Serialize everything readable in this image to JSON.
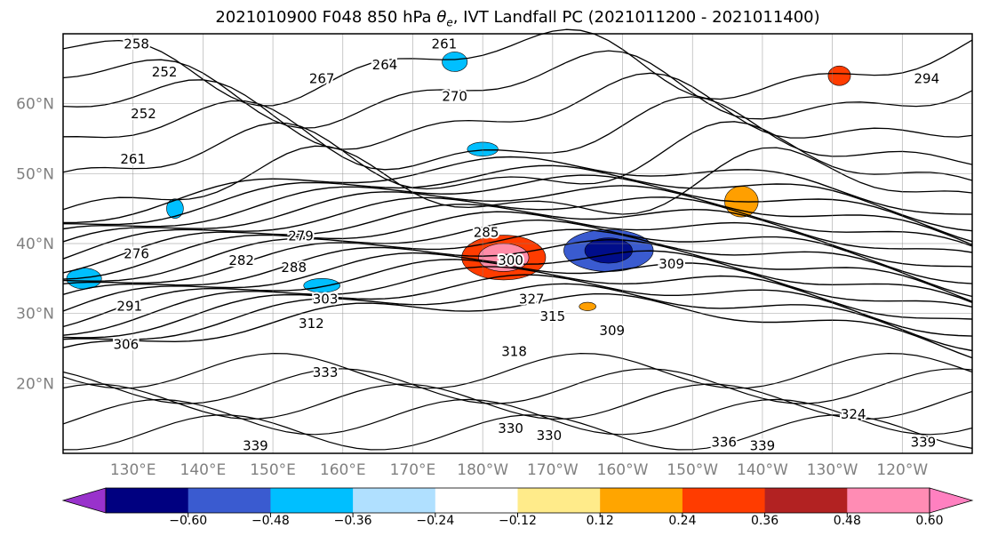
{
  "chart_data": {
    "type": "contour",
    "title_parts": {
      "prefix": "2021010900 F048 850 hPa ",
      "theta": "θ",
      "theta_sub": "e",
      "suffix": ", IVT Landfall PC (2021011200 - 2021011400)"
    },
    "lon_ticks": [
      "130°E",
      "140°E",
      "150°E",
      "160°E",
      "170°E",
      "180°W",
      "170°W",
      "160°W",
      "150°W",
      "140°W",
      "130°W",
      "120°W"
    ],
    "lat_ticks": [
      "60°N",
      "50°N",
      "40°N",
      "30°N",
      "20°N"
    ],
    "xlim": [
      120,
      250
    ],
    "ylim": [
      10,
      70
    ],
    "grid": true,
    "contour_labels": [
      {
        "text": "258",
        "lon": 130.5,
        "lat": 68.5
      },
      {
        "text": "252",
        "lon": 134.5,
        "lat": 64.5
      },
      {
        "text": "261",
        "lon": 174.5,
        "lat": 68.5
      },
      {
        "text": "264",
        "lon": 166,
        "lat": 65.5
      },
      {
        "text": "267",
        "lon": 157,
        "lat": 63.5
      },
      {
        "text": "270",
        "lon": 176,
        "lat": 61
      },
      {
        "text": "252",
        "lon": 131.5,
        "lat": 58.5
      },
      {
        "text": "261",
        "lon": 130,
        "lat": 52
      },
      {
        "text": "276",
        "lon": 130.5,
        "lat": 38.5
      },
      {
        "text": "279",
        "lon": 154,
        "lat": 41
      },
      {
        "text": "282",
        "lon": 145.5,
        "lat": 37.5
      },
      {
        "text": "288",
        "lon": 153,
        "lat": 36.5
      },
      {
        "text": "285",
        "lon": 180.5,
        "lat": 41.5
      },
      {
        "text": "300",
        "lon": 184,
        "lat": 37.5
      },
      {
        "text": "309",
        "lon": 207,
        "lat": 37
      },
      {
        "text": "303",
        "lon": 157.5,
        "lat": 32
      },
      {
        "text": "327",
        "lon": 187,
        "lat": 32
      },
      {
        "text": "315",
        "lon": 190,
        "lat": 29.5
      },
      {
        "text": "312",
        "lon": 155.5,
        "lat": 28.5
      },
      {
        "text": "291",
        "lon": 129.5,
        "lat": 31
      },
      {
        "text": "306",
        "lon": 129,
        "lat": 25.5
      },
      {
        "text": "318",
        "lon": 184.5,
        "lat": 24.5
      },
      {
        "text": "309",
        "lon": 198.5,
        "lat": 27.5
      },
      {
        "text": "333",
        "lon": 157.5,
        "lat": 21.5
      },
      {
        "text": "324",
        "lon": 233,
        "lat": 15.5
      },
      {
        "text": "330",
        "lon": 184,
        "lat": 13.5
      },
      {
        "text": "330",
        "lon": 189.5,
        "lat": 12.5
      },
      {
        "text": "336",
        "lon": 214.5,
        "lat": 11.5
      },
      {
        "text": "339",
        "lon": 220,
        "lat": 11
      },
      {
        "text": "339",
        "lon": 147.5,
        "lat": 11
      },
      {
        "text": "339",
        "lon": 243,
        "lat": 11.5
      },
      {
        "text": "294",
        "lon": 243.5,
        "lat": 63.5
      }
    ],
    "shading_patches": [
      {
        "lon": 183,
        "lat": 38,
        "rx": 6,
        "ry": 3.2,
        "color": "#ff3c00"
      },
      {
        "lon": 183,
        "lat": 38,
        "rx": 3.6,
        "ry": 2.0,
        "color": "#ff8ca8"
      },
      {
        "lon": 198,
        "lat": 39,
        "rx": 6.4,
        "ry": 3.0,
        "color": "#3a5bd0"
      },
      {
        "lon": 198,
        "lat": 39,
        "rx": 3.4,
        "ry": 1.8,
        "color": "#000d8a"
      },
      {
        "lon": 157,
        "lat": 34,
        "rx": 2.6,
        "ry": 1.0,
        "color": "#00bfff"
      },
      {
        "lon": 217,
        "lat": 46,
        "rx": 2.4,
        "ry": 2.2,
        "color": "#ff9f00"
      },
      {
        "lon": 231,
        "lat": 64,
        "rx": 1.6,
        "ry": 1.4,
        "color": "#ff3c00"
      },
      {
        "lon": 123,
        "lat": 35,
        "rx": 2.5,
        "ry": 1.5,
        "color": "#00bfff"
      },
      {
        "lon": 136,
        "lat": 45,
        "rx": 1.2,
        "ry": 1.4,
        "color": "#00bfff"
      },
      {
        "lon": 180,
        "lat": 53.5,
        "rx": 2.2,
        "ry": 1.0,
        "color": "#00bfff"
      },
      {
        "lon": 176,
        "lat": 66,
        "rx": 1.8,
        "ry": 1.4,
        "color": "#00bfff"
      },
      {
        "lon": 195,
        "lat": 31,
        "rx": 1.2,
        "ry": 0.6,
        "color": "#ff9f00"
      }
    ],
    "colorbar": {
      "colors": [
        "#9932cc",
        "#000080",
        "#3a5bd0",
        "#00bfff",
        "#b0e0ff",
        "#ffffff",
        "#ffeb8a",
        "#ffa500",
        "#ff3c00",
        "#b22222",
        "#ff8cb4",
        "#ff80c0"
      ],
      "tick_labels": [
        "−0.60",
        "−0.48",
        "−0.36",
        "−0.24",
        "−0.12",
        "0.12",
        "0.24",
        "0.36",
        "0.48",
        "0.60"
      ],
      "extend": "both"
    }
  }
}
